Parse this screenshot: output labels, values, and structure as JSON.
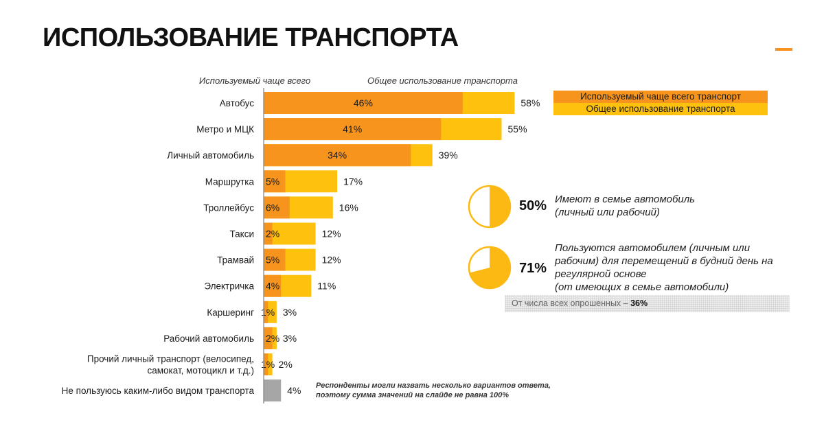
{
  "title": "ИСПОЛЬЗОВАНИЕ ТРАНСПОРТА",
  "colors": {
    "accent": "#f7931e",
    "most_used": "#f7941d",
    "total_use": "#fdc10e",
    "none": "#a6a6a6",
    "pie_fill": "#fdb913"
  },
  "column_headers": {
    "left": "Используемый чаще всего",
    "right": "Общее использование транспорта"
  },
  "legend": {
    "most_used": "Используемый чаще всего транспорт",
    "total_use": "Общее использование транспорта"
  },
  "chart_data": {
    "type": "bar",
    "orientation": "horizontal",
    "categories": [
      "Автобус",
      "Метро и МЦК",
      "Личный автомобиль",
      "Маршрутка",
      "Троллейбус",
      "Такси",
      "Трамвай",
      "Электричка",
      "Каршеринг",
      "Рабочий автомобиль",
      [
        "Прочий личный транспорт (велосипед,",
        "самокат, мотоцикл и т.д.)"
      ],
      "Не пользуюсь каким-либо видом транспорта"
    ],
    "series": [
      {
        "name": "Используемый чаще всего транспорт",
        "values": [
          46,
          41,
          34,
          5,
          6,
          2,
          5,
          4,
          1,
          2,
          1,
          null
        ]
      },
      {
        "name": "Общее использование транспорта",
        "values": [
          58,
          55,
          39,
          17,
          16,
          12,
          12,
          11,
          3,
          3,
          2,
          4
        ]
      }
    ],
    "labels_most_used": [
      "46%",
      "41%",
      "34%",
      "5%",
      "6%",
      "2%",
      "5%",
      "4%",
      "1%",
      "2%",
      "1%",
      ""
    ],
    "labels_total": [
      "58%",
      "55%",
      "39%",
      "17%",
      "16%",
      "12%",
      "12%",
      "11%",
      "3%",
      "3%",
      "2%",
      "4%"
    ],
    "xlim": [
      0,
      100
    ],
    "grid": false,
    "legend_position": "top-right"
  },
  "pies": [
    {
      "value": 50,
      "label": "50%",
      "text": [
        "Имеют в семье автомобиль",
        "(личный или рабочий)"
      ]
    },
    {
      "value": 71,
      "label": "71%",
      "text": [
        "Пользуются автомобилем (личным или",
        "рабочим) для перемещений в будний день на",
        "регулярной основе",
        "(от имеющих в семье автомобили)"
      ]
    }
  ],
  "note": {
    "prefix": "От числа всех опрошенных – ",
    "value": "36%"
  },
  "footnote": [
    "Респонденты могли назвать несколько вариантов ответа,",
    "поэтому сумма значений на слайде не равна 100%"
  ]
}
